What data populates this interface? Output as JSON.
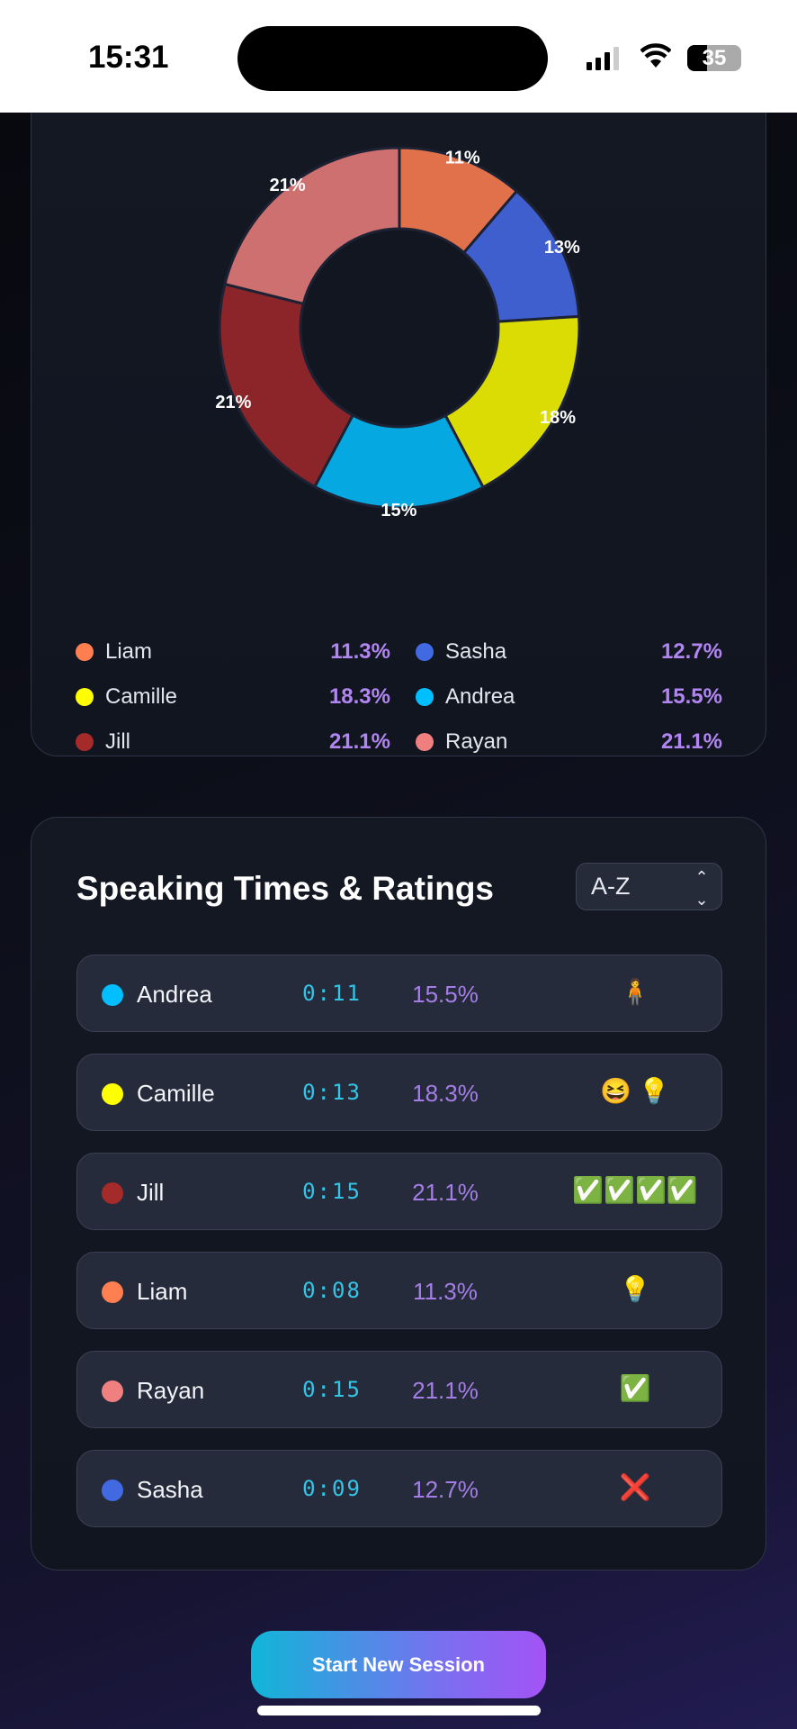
{
  "status_bar": {
    "time": "15:31",
    "battery": "35"
  },
  "chart_data": {
    "type": "pie",
    "donut": true,
    "categories": [
      "Liam",
      "Sasha",
      "Camille",
      "Andrea",
      "Jill",
      "Rayan"
    ],
    "values": [
      11.3,
      12.7,
      18.3,
      15.5,
      21.1,
      21.1
    ],
    "labels": [
      "11%",
      "13%",
      "18%",
      "15%",
      "21%",
      "21%"
    ],
    "colors": [
      "#e0714a",
      "#3f5fcf",
      "#dcdc05",
      "#05a8e0",
      "#8b2529",
      "#cf7070"
    ]
  },
  "legend": [
    {
      "name": "Liam",
      "pct": "11.3%",
      "color": "#ff7f50"
    },
    {
      "name": "Sasha",
      "pct": "12.7%",
      "color": "#4169e1"
    },
    {
      "name": "Camille",
      "pct": "18.3%",
      "color": "#ffff00"
    },
    {
      "name": "Andrea",
      "pct": "15.5%",
      "color": "#00bfff"
    },
    {
      "name": "Jill",
      "pct": "21.1%",
      "color": "#a52a2a"
    },
    {
      "name": "Rayan",
      "pct": "21.1%",
      "color": "#f08080"
    }
  ],
  "ratings": {
    "title": "Speaking Times & Ratings",
    "sort": "A-Z",
    "rows": [
      {
        "name": "Andrea",
        "time": "0:11",
        "pct": "15.5%",
        "emoji": "🧍",
        "color": "#00bfff"
      },
      {
        "name": "Camille",
        "time": "0:13",
        "pct": "18.3%",
        "emoji": "😆 💡",
        "color": "#ffff00"
      },
      {
        "name": "Jill",
        "time": "0:15",
        "pct": "21.1%",
        "emoji": "✅✅✅✅",
        "color": "#a52a2a"
      },
      {
        "name": "Liam",
        "time": "0:08",
        "pct": "11.3%",
        "emoji": "💡",
        "color": "#ff7f50"
      },
      {
        "name": "Rayan",
        "time": "0:15",
        "pct": "21.1%",
        "emoji": "✅",
        "color": "#f08080"
      },
      {
        "name": "Sasha",
        "time": "0:09",
        "pct": "12.7%",
        "emoji": "❌",
        "color": "#4169e1"
      }
    ]
  },
  "button": {
    "label": "Start New Session"
  }
}
